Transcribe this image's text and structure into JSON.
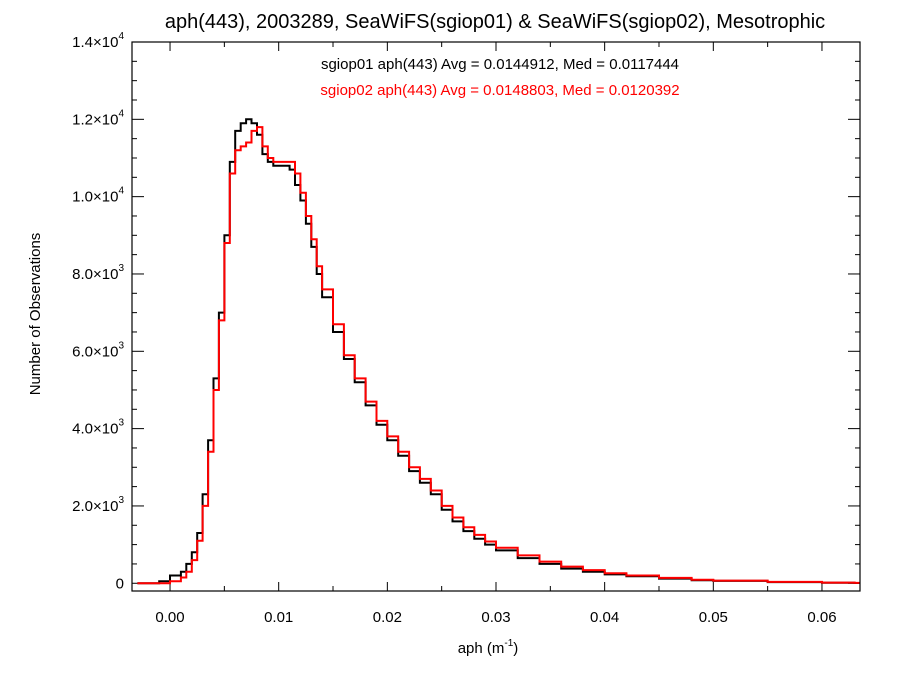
{
  "chart_data": {
    "type": "line",
    "title": "aph(443), 2003289, SeaWiFS(sgiop01) & SeaWiFS(sgiop02), Mesotrophic",
    "xlabel_base": "aph (m",
    "xlabel_sup": "-1",
    "xlabel_close": ")",
    "ylabel": "Number of Observations",
    "xlim": [
      -0.0035,
      0.0635
    ],
    "ylim": [
      -200,
      14000
    ],
    "x_ticks": [
      {
        "value": 0.0,
        "label": "0.00"
      },
      {
        "value": 0.01,
        "label": "0.01"
      },
      {
        "value": 0.02,
        "label": "0.02"
      },
      {
        "value": 0.03,
        "label": "0.03"
      },
      {
        "value": 0.04,
        "label": "0.04"
      },
      {
        "value": 0.05,
        "label": "0.05"
      },
      {
        "value": 0.06,
        "label": "0.06"
      }
    ],
    "y_ticks": [
      {
        "value": 0,
        "mant": "0",
        "exp": ""
      },
      {
        "value": 2000,
        "mant": "2.0×10",
        "exp": "3"
      },
      {
        "value": 4000,
        "mant": "4.0×10",
        "exp": "3"
      },
      {
        "value": 6000,
        "mant": "6.0×10",
        "exp": "3"
      },
      {
        "value": 8000,
        "mant": "8.0×10",
        "exp": "3"
      },
      {
        "value": 10000,
        "mant": "1.0×10",
        "exp": "4"
      },
      {
        "value": 12000,
        "mant": "1.2×10",
        "exp": "4"
      },
      {
        "value": 14000,
        "mant": "1.4×10",
        "exp": "4"
      }
    ],
    "annotations": [
      "sgiop01 aph(443) Avg = 0.0144912, Med = 0.0117444",
      "sgiop02 aph(443) Avg = 0.0148803, Med = 0.0120392"
    ],
    "series": [
      {
        "color": "#000000",
        "x": [
          -0.003,
          -0.001,
          0.0,
          0.001,
          0.0015,
          0.002,
          0.0025,
          0.003,
          0.0035,
          0.004,
          0.0045,
          0.005,
          0.0055,
          0.006,
          0.0065,
          0.007,
          0.0075,
          0.008,
          0.0085,
          0.009,
          0.0095,
          0.01,
          0.0105,
          0.011,
          0.0115,
          0.012,
          0.0125,
          0.013,
          0.0135,
          0.014,
          0.015,
          0.016,
          0.017,
          0.018,
          0.019,
          0.02,
          0.021,
          0.022,
          0.023,
          0.024,
          0.025,
          0.026,
          0.027,
          0.028,
          0.029,
          0.03,
          0.032,
          0.034,
          0.036,
          0.038,
          0.04,
          0.042,
          0.045,
          0.048,
          0.05,
          0.055,
          0.06,
          0.063
        ],
        "values": [
          0,
          50,
          200,
          300,
          500,
          800,
          1300,
          2300,
          3700,
          5300,
          7000,
          9000,
          10900,
          11700,
          11900,
          12000,
          11900,
          11600,
          11100,
          10900,
          10800,
          10800,
          10800,
          10700,
          10300,
          9900,
          9300,
          8700,
          8000,
          7400,
          6500,
          5800,
          5200,
          4600,
          4100,
          3700,
          3300,
          2900,
          2600,
          2300,
          1900,
          1600,
          1350,
          1150,
          1000,
          850,
          650,
          500,
          380,
          300,
          230,
          180,
          120,
          80,
          60,
          30,
          15,
          8
        ]
      },
      {
        "color": "#ff0000",
        "x": [
          -0.003,
          -0.001,
          0.0,
          0.001,
          0.0015,
          0.002,
          0.0025,
          0.003,
          0.0035,
          0.004,
          0.0045,
          0.005,
          0.0055,
          0.006,
          0.0065,
          0.007,
          0.0075,
          0.008,
          0.0085,
          0.009,
          0.0095,
          0.01,
          0.0105,
          0.011,
          0.0115,
          0.012,
          0.0125,
          0.013,
          0.0135,
          0.014,
          0.015,
          0.016,
          0.017,
          0.018,
          0.019,
          0.02,
          0.021,
          0.022,
          0.023,
          0.024,
          0.025,
          0.026,
          0.027,
          0.028,
          0.029,
          0.03,
          0.032,
          0.034,
          0.036,
          0.038,
          0.04,
          0.042,
          0.045,
          0.048,
          0.05,
          0.055,
          0.06,
          0.063
        ],
        "values": [
          0,
          0,
          50,
          150,
          300,
          600,
          1100,
          2000,
          3400,
          5000,
          6800,
          8800,
          10600,
          11200,
          11300,
          11400,
          11700,
          11800,
          11300,
          11000,
          10900,
          10900,
          10900,
          10900,
          10600,
          10100,
          9500,
          8900,
          8200,
          7600,
          6700,
          5900,
          5300,
          4700,
          4200,
          3800,
          3400,
          3000,
          2700,
          2400,
          2000,
          1700,
          1450,
          1250,
          1080,
          920,
          720,
          560,
          430,
          340,
          260,
          200,
          140,
          90,
          70,
          35,
          18,
          10
        ]
      }
    ]
  }
}
